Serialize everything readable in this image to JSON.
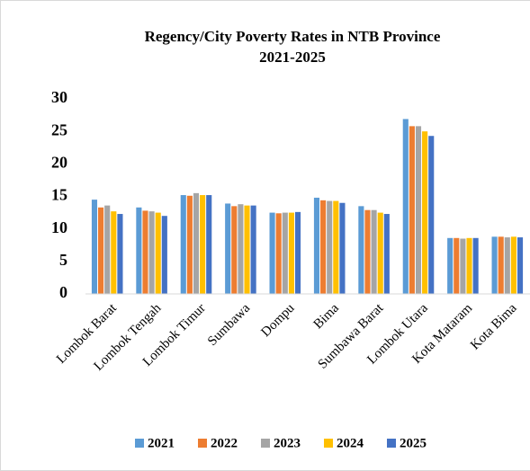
{
  "chart_data": {
    "type": "bar",
    "title": "Regency/City Poverty Rates in NTB Province",
    "subtitle": "2021-2025",
    "categories": [
      "Lombok Barat",
      "Lombok Tengah",
      "Lombok Timur",
      "Sumbawa",
      "Dompu",
      "Bima",
      "Sumbawa Barat",
      "Lombok Utara",
      "Kota Mataram",
      "Kota Bima"
    ],
    "series": [
      {
        "name": "2021",
        "color": "#5b9bd5",
        "values": [
          14.5,
          13.3,
          15.2,
          13.9,
          12.5,
          14.8,
          13.5,
          26.9,
          8.6,
          8.8
        ]
      },
      {
        "name": "2022",
        "color": "#ed7d31",
        "values": [
          13.3,
          12.8,
          15.1,
          13.5,
          12.4,
          14.4,
          12.9,
          25.8,
          8.6,
          8.8
        ]
      },
      {
        "name": "2023",
        "color": "#a5a5a5",
        "values": [
          13.6,
          12.7,
          15.5,
          13.8,
          12.5,
          14.3,
          12.9,
          25.8,
          8.5,
          8.7
        ]
      },
      {
        "name": "2024",
        "color": "#ffc000",
        "values": [
          12.7,
          12.5,
          15.2,
          13.6,
          12.5,
          14.3,
          12.5,
          25.0,
          8.6,
          8.8
        ]
      },
      {
        "name": "2025",
        "color": "#4472c4",
        "values": [
          12.3,
          12.0,
          15.2,
          13.6,
          12.6,
          14.0,
          12.3,
          24.3,
          8.6,
          8.7
        ]
      }
    ],
    "ylim": [
      0,
      30
    ],
    "yticks": [
      0,
      5,
      10,
      15,
      20,
      25,
      30
    ],
    "grid": false,
    "legend": "bottom"
  }
}
